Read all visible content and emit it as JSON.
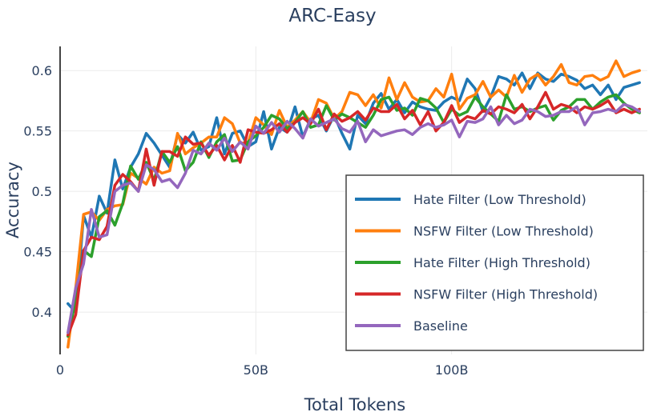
{
  "chart_data": {
    "type": "line",
    "title": "ARC-Easy",
    "xlabel": "Total Tokens",
    "ylabel": "Accuracy",
    "xlim": [
      0,
      150
    ],
    "ylim": [
      0.365,
      0.62
    ],
    "x_ticks": [
      {
        "value": 0,
        "label": "0"
      },
      {
        "value": 50,
        "label": "50B"
      },
      {
        "value": 100,
        "label": "100B"
      }
    ],
    "y_ticks": [
      {
        "value": 0.4,
        "label": "0.4"
      },
      {
        "value": 0.45,
        "label": "0.45"
      },
      {
        "value": 0.5,
        "label": "0.5"
      },
      {
        "value": 0.55,
        "label": "0.55"
      },
      {
        "value": 0.6,
        "label": "0.6"
      }
    ],
    "grid": true,
    "legend_position": "bottom-right",
    "x": [
      2,
      4,
      6,
      8,
      10,
      12,
      14,
      16,
      18,
      20,
      22,
      24,
      26,
      28,
      30,
      32,
      34,
      36,
      38,
      40,
      42,
      44,
      46,
      48,
      50,
      52,
      54,
      56,
      58,
      60,
      62,
      64,
      66,
      68,
      70,
      72,
      74,
      76,
      78,
      80,
      82,
      84,
      86,
      88,
      90,
      92,
      94,
      96,
      98,
      100,
      102,
      104,
      106,
      108,
      110,
      112,
      114,
      116,
      118,
      120,
      122,
      124,
      126,
      128,
      130,
      132,
      134,
      136,
      138,
      140,
      142,
      144,
      146,
      148
    ],
    "series": [
      {
        "name": "Hate Filter (Low Threshold)",
        "color": "#1f77b4",
        "values": [
          0.407,
          0.4,
          0.48,
          0.462,
          0.496,
          0.482,
          0.526,
          0.502,
          0.52,
          0.531,
          0.548,
          0.54,
          0.53,
          0.52,
          0.547,
          0.54,
          0.549,
          0.534,
          0.537,
          0.561,
          0.531,
          0.548,
          0.55,
          0.537,
          0.541,
          0.566,
          0.535,
          0.553,
          0.549,
          0.57,
          0.545,
          0.56,
          0.563,
          0.55,
          0.563,
          0.548,
          0.535,
          0.563,
          0.556,
          0.573,
          0.581,
          0.568,
          0.576,
          0.565,
          0.574,
          0.57,
          0.568,
          0.567,
          0.574,
          0.578,
          0.575,
          0.593,
          0.585,
          0.566,
          0.578,
          0.595,
          0.593,
          0.588,
          0.598,
          0.585,
          0.598,
          0.593,
          0.591,
          0.597,
          0.595,
          0.592,
          0.585,
          0.588,
          0.58,
          0.588,
          0.576,
          0.586,
          0.588,
          0.59
        ]
      },
      {
        "name": "NSFW Filter (Low Threshold)",
        "color": "#ff7f0e",
        "values": [
          0.371,
          0.42,
          0.481,
          0.483,
          0.476,
          0.485,
          0.488,
          0.489,
          0.515,
          0.511,
          0.506,
          0.52,
          0.515,
          0.517,
          0.548,
          0.531,
          0.536,
          0.54,
          0.545,
          0.545,
          0.561,
          0.556,
          0.54,
          0.54,
          0.561,
          0.555,
          0.547,
          0.567,
          0.553,
          0.559,
          0.566,
          0.557,
          0.576,
          0.573,
          0.56,
          0.566,
          0.582,
          0.58,
          0.571,
          0.58,
          0.569,
          0.594,
          0.576,
          0.59,
          0.578,
          0.574,
          0.575,
          0.585,
          0.578,
          0.597,
          0.568,
          0.577,
          0.58,
          0.591,
          0.578,
          0.584,
          0.578,
          0.596,
          0.582,
          0.593,
          0.597,
          0.588,
          0.595,
          0.605,
          0.59,
          0.588,
          0.595,
          0.596,
          0.592,
          0.595,
          0.608,
          0.595,
          0.598,
          0.6
        ]
      },
      {
        "name": "Hate Filter (High Threshold)",
        "color": "#2ca02c",
        "values": [
          0.38,
          0.41,
          0.451,
          0.446,
          0.479,
          0.484,
          0.472,
          0.49,
          0.521,
          0.51,
          0.524,
          0.509,
          0.533,
          0.524,
          0.537,
          0.517,
          0.524,
          0.541,
          0.528,
          0.541,
          0.547,
          0.525,
          0.526,
          0.541,
          0.546,
          0.553,
          0.563,
          0.56,
          0.552,
          0.557,
          0.566,
          0.553,
          0.555,
          0.571,
          0.559,
          0.564,
          0.561,
          0.557,
          0.553,
          0.563,
          0.576,
          0.578,
          0.567,
          0.569,
          0.563,
          0.577,
          0.575,
          0.569,
          0.557,
          0.568,
          0.563,
          0.566,
          0.578,
          0.57,
          0.564,
          0.558,
          0.58,
          0.568,
          0.57,
          0.566,
          0.569,
          0.571,
          0.559,
          0.567,
          0.57,
          0.576,
          0.576,
          0.568,
          0.574,
          0.578,
          0.58,
          0.573,
          0.568,
          0.565
        ]
      },
      {
        "name": "NSFW Filter (High Threshold)",
        "color": "#d62728",
        "values": [
          0.381,
          0.398,
          0.451,
          0.462,
          0.46,
          0.471,
          0.505,
          0.514,
          0.508,
          0.5,
          0.535,
          0.505,
          0.533,
          0.533,
          0.529,
          0.545,
          0.539,
          0.54,
          0.53,
          0.538,
          0.526,
          0.538,
          0.524,
          0.551,
          0.549,
          0.548,
          0.551,
          0.556,
          0.549,
          0.557,
          0.561,
          0.556,
          0.568,
          0.551,
          0.564,
          0.558,
          0.561,
          0.566,
          0.559,
          0.569,
          0.566,
          0.566,
          0.572,
          0.56,
          0.567,
          0.555,
          0.566,
          0.55,
          0.557,
          0.571,
          0.557,
          0.562,
          0.56,
          0.567,
          0.564,
          0.57,
          0.568,
          0.565,
          0.572,
          0.56,
          0.57,
          0.582,
          0.568,
          0.572,
          0.57,
          0.565,
          0.57,
          0.568,
          0.571,
          0.575,
          0.565,
          0.568,
          0.565,
          0.568
        ]
      },
      {
        "name": "Baseline",
        "color": "#9467bd",
        "values": [
          0.383,
          0.42,
          0.44,
          0.485,
          0.462,
          0.464,
          0.5,
          0.505,
          0.507,
          0.5,
          0.522,
          0.518,
          0.508,
          0.51,
          0.503,
          0.515,
          0.534,
          0.531,
          0.54,
          0.534,
          0.544,
          0.533,
          0.541,
          0.535,
          0.554,
          0.548,
          0.557,
          0.549,
          0.558,
          0.552,
          0.544,
          0.56,
          0.554,
          0.557,
          0.56,
          0.552,
          0.549,
          0.558,
          0.541,
          0.551,
          0.546,
          0.548,
          0.55,
          0.551,
          0.547,
          0.553,
          0.556,
          0.553,
          0.555,
          0.559,
          0.545,
          0.558,
          0.557,
          0.56,
          0.57,
          0.555,
          0.563,
          0.556,
          0.559,
          0.568,
          0.566,
          0.562,
          0.563,
          0.566,
          0.566,
          0.57,
          0.555,
          0.565,
          0.566,
          0.568,
          0.566,
          0.572,
          0.57,
          0.566
        ]
      }
    ]
  }
}
